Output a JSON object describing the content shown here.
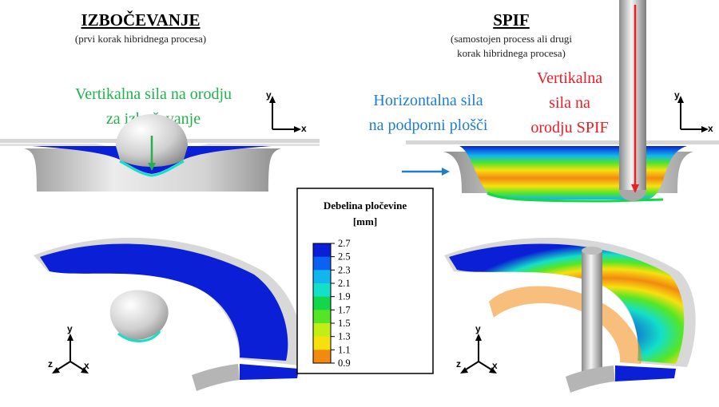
{
  "left_panel": {
    "title": "IZBOČEVANJE",
    "subtitle": "(prvi korak hibridnega procesa)",
    "force_label_line1": "Vertikalna sila na orodju",
    "force_label_line2": "za izbočevanje"
  },
  "right_panel": {
    "title": "SPIF",
    "subtitle_line1": "(samostojen process ali drugi",
    "subtitle_line2": "korak hibridnega procesa)",
    "horizontal_force_line1": "Horizontalna sila",
    "horizontal_force_line2": "na podporni plošči",
    "vertical_force_line1": "Vertikalna",
    "vertical_force_line2": "sila na",
    "vertical_force_line3": "orodju SPIF"
  },
  "legend": {
    "title_line1": "Debelina pločevine",
    "title_line2": "[mm]",
    "ticks": [
      "2.7",
      "2.5",
      "2.3",
      "2.1",
      "1.9",
      "1.7",
      "1.5",
      "1.3",
      "1.1",
      "0.9"
    ],
    "colors": [
      "#0a1fd6",
      "#0b62f2",
      "#11b6ee",
      "#14e0c8",
      "#14d64a",
      "#54e626",
      "#c2ee16",
      "#f7e010",
      "#f28a10",
      "#e81a10"
    ]
  },
  "axes": {
    "x": "x",
    "y": "y",
    "z": "z"
  },
  "colors": {
    "green_label": "#22b14c",
    "blue_label": "#1f7ecb",
    "red_label": "#ee1c24",
    "sheet_blue": "#0a1fd6",
    "die_gray": "#c8c8c8"
  }
}
